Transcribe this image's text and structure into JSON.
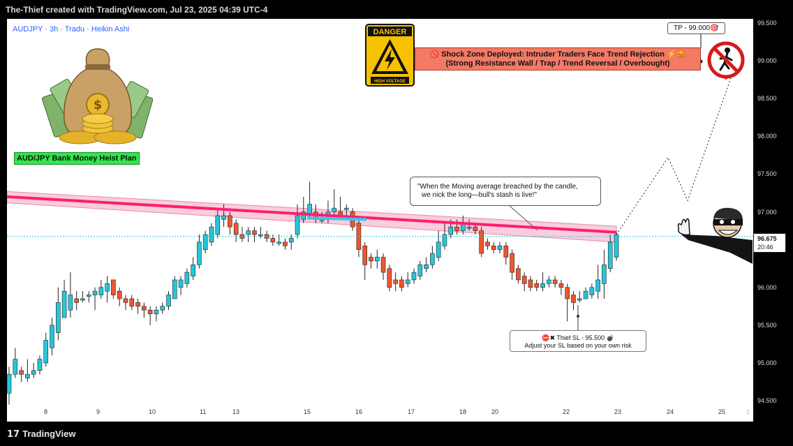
{
  "header": {
    "title": "The-Thief created with TradingView.com, Jul 23, 2025 04:39 UTC-4"
  },
  "symbol_line": "AUDJPY · 3h · Tradu · Heikin Ashi",
  "plan_label": "AUD/JPY Bank Money Heist Plan",
  "danger_sign": {
    "top": "DANGER",
    "bottom": "HIGH VOLTAGE"
  },
  "alert_box": {
    "line1": "🚫 Shock Zone Deployed: Intruder Traders Face Trend Rejection ⚡😡",
    "line2": "(Strong Resistance Wall / Trap / Trend Reversal / Overbought)"
  },
  "tp_label": "TP - 99.000🎯",
  "quote": {
    "line1": "\"When the Moving average breached by the candle,",
    "line2": "we nick the long—bull's stash is live!\""
  },
  "sl_box": {
    "line1": "⛔✖ Thief SL - 95.500 💣",
    "line2": "Adjust your SL based on your own risk"
  },
  "current_price": {
    "value": "96.675",
    "time": "20:46"
  },
  "branding": "TradingView",
  "colors": {
    "up": "#26c6da",
    "down": "#f0552f",
    "ma": "#ff1e6e",
    "band": "#f8cddd",
    "accent": "#2962ff"
  },
  "chart_data": {
    "type": "candlestick",
    "style": "Heikin Ashi",
    "price_axis": [
      "99.500",
      "99.000",
      "98.500",
      "98.000",
      "97.500",
      "97.000",
      "96.500",
      "96.000",
      "95.500",
      "95.000",
      "94.500"
    ],
    "date_axis": [
      "8",
      "9",
      "10",
      "11",
      "13",
      "15",
      "16",
      "17",
      "18",
      "20",
      "22",
      "23",
      "24",
      "25",
      "2"
    ],
    "ylim": [
      94.45,
      99.6
    ],
    "moving_average": {
      "start": 97.2,
      "end": 96.73
    },
    "resistance_band": {
      "start_top": 97.27,
      "start_bottom": 97.12,
      "end_top": 96.81,
      "end_bottom": 96.6
    },
    "candles": [
      [
        94.6,
        94.85,
        94.45,
        94.95
      ],
      [
        94.85,
        95.05,
        94.8,
        95.2
      ],
      [
        94.9,
        94.85,
        94.75,
        94.95
      ],
      [
        94.8,
        94.85,
        94.75,
        95.05
      ],
      [
        94.85,
        94.9,
        94.8,
        95.0
      ],
      [
        94.9,
        95.05,
        94.85,
        95.1
      ],
      [
        95.0,
        95.3,
        94.95,
        95.4
      ],
      [
        95.2,
        95.5,
        95.1,
        95.6
      ],
      [
        95.4,
        95.8,
        95.3,
        96.0
      ],
      [
        95.6,
        95.95,
        95.6,
        96.1
      ],
      [
        95.7,
        95.9,
        95.6,
        96.2
      ],
      [
        95.85,
        95.8,
        95.7,
        95.95
      ],
      [
        95.85,
        95.85,
        95.8,
        95.95
      ],
      [
        95.9,
        95.9,
        95.8,
        95.95
      ],
      [
        95.9,
        95.95,
        95.7,
        96.0
      ],
      [
        95.9,
        96.0,
        95.85,
        96.1
      ],
      [
        95.95,
        96.05,
        95.8,
        96.15
      ],
      [
        96.1,
        95.9,
        95.85,
        96.1
      ],
      [
        95.95,
        95.85,
        95.75,
        96.0
      ],
      [
        95.85,
        95.8,
        95.7,
        95.9
      ],
      [
        95.85,
        95.75,
        95.7,
        95.9
      ],
      [
        95.8,
        95.75,
        95.65,
        95.85
      ],
      [
        95.75,
        95.7,
        95.6,
        95.8
      ],
      [
        95.7,
        95.65,
        95.5,
        95.75
      ],
      [
        95.65,
        95.7,
        95.55,
        95.75
      ],
      [
        95.7,
        95.75,
        95.65,
        95.8
      ],
      [
        95.75,
        95.9,
        95.7,
        95.95
      ],
      [
        95.85,
        96.1,
        95.85,
        96.15
      ],
      [
        96.0,
        96.1,
        95.9,
        96.15
      ],
      [
        96.05,
        96.2,
        96.0,
        96.25
      ],
      [
        96.15,
        96.3,
        96.1,
        96.4
      ],
      [
        96.3,
        96.6,
        96.25,
        96.7
      ],
      [
        96.5,
        96.7,
        96.45,
        96.75
      ],
      [
        96.6,
        96.8,
        96.55,
        96.85
      ],
      [
        96.7,
        96.95,
        96.65,
        97.05
      ],
      [
        96.9,
        96.95,
        96.8,
        97.1
      ],
      [
        96.95,
        96.8,
        96.7,
        97.0
      ],
      [
        96.85,
        96.7,
        96.6,
        96.9
      ],
      [
        96.7,
        96.65,
        96.6,
        96.8
      ],
      [
        96.7,
        96.75,
        96.6,
        96.8
      ],
      [
        96.75,
        96.7,
        96.6,
        96.8
      ],
      [
        96.7,
        96.7,
        96.65,
        96.8
      ],
      [
        96.7,
        96.65,
        96.6,
        96.75
      ],
      [
        96.65,
        96.6,
        96.55,
        96.7
      ],
      [
        96.6,
        96.6,
        96.55,
        96.7
      ],
      [
        96.6,
        96.55,
        96.5,
        96.65
      ],
      [
        96.6,
        96.65,
        96.5,
        96.7
      ],
      [
        96.7,
        96.95,
        96.65,
        97.1
      ],
      [
        96.9,
        97.0,
        96.85,
        97.2
      ],
      [
        96.95,
        97.1,
        96.9,
        97.4
      ],
      [
        97.0,
        96.9,
        96.85,
        97.1
      ],
      [
        96.9,
        96.9,
        96.85,
        97.0
      ],
      [
        96.9,
        97.0,
        96.85,
        97.15
      ],
      [
        97.0,
        97.05,
        96.95,
        97.3
      ],
      [
        97.0,
        96.95,
        96.9,
        97.2
      ],
      [
        97.05,
        97.05,
        96.95,
        97.1
      ],
      [
        97.0,
        96.8,
        96.75,
        97.05
      ],
      [
        96.85,
        96.5,
        96.4,
        96.9
      ],
      [
        96.55,
        96.3,
        96.1,
        96.6
      ],
      [
        96.4,
        96.35,
        96.25,
        96.45
      ],
      [
        96.35,
        96.4,
        96.25,
        96.5
      ],
      [
        96.4,
        96.2,
        96.1,
        96.45
      ],
      [
        96.25,
        96.0,
        95.95,
        96.3
      ],
      [
        96.1,
        96.05,
        95.95,
        96.2
      ],
      [
        96.1,
        96.0,
        95.95,
        96.15
      ],
      [
        96.05,
        96.1,
        96.0,
        96.2
      ],
      [
        96.1,
        96.2,
        96.05,
        96.25
      ],
      [
        96.15,
        96.3,
        96.1,
        96.35
      ],
      [
        96.25,
        96.3,
        96.2,
        96.4
      ],
      [
        96.3,
        96.45,
        96.25,
        96.55
      ],
      [
        96.4,
        96.6,
        96.35,
        96.75
      ],
      [
        96.55,
        96.7,
        96.5,
        96.85
      ],
      [
        96.7,
        96.8,
        96.65,
        96.9
      ],
      [
        96.8,
        96.75,
        96.7,
        96.9
      ],
      [
        96.75,
        96.85,
        96.7,
        96.95
      ],
      [
        96.8,
        96.8,
        96.75,
        96.9
      ],
      [
        96.8,
        96.75,
        96.7,
        96.85
      ],
      [
        96.75,
        96.45,
        96.4,
        96.8
      ],
      [
        96.6,
        96.55,
        96.5,
        96.65
      ],
      [
        96.55,
        96.5,
        96.45,
        96.6
      ],
      [
        96.5,
        96.55,
        96.45,
        96.6
      ],
      [
        96.55,
        96.4,
        96.3,
        96.6
      ],
      [
        96.45,
        96.2,
        96.1,
        96.5
      ],
      [
        96.25,
        96.1,
        96.05,
        96.3
      ],
      [
        96.15,
        96.05,
        95.95,
        96.2
      ],
      [
        96.1,
        96.0,
        95.95,
        96.15
      ],
      [
        96.05,
        96.0,
        95.95,
        96.1
      ],
      [
        96.0,
        96.05,
        95.95,
        96.2
      ],
      [
        96.05,
        96.1,
        96.0,
        96.15
      ],
      [
        96.1,
        96.05,
        96.0,
        96.15
      ],
      [
        96.05,
        96.0,
        95.9,
        96.1
      ],
      [
        96.0,
        95.85,
        95.55,
        96.05
      ],
      [
        95.9,
        95.8,
        95.7,
        95.95
      ],
      [
        95.85,
        95.85,
        95.8,
        95.95
      ],
      [
        95.85,
        95.95,
        95.85,
        96.0
      ],
      [
        95.9,
        96.0,
        95.85,
        96.05
      ],
      [
        95.95,
        96.1,
        95.85,
        96.3
      ],
      [
        96.05,
        96.3,
        95.85,
        96.5
      ],
      [
        96.25,
        96.6,
        96.2,
        96.7
      ],
      [
        96.4,
        96.7,
        96.35,
        96.75
      ]
    ],
    "forecast_path": [
      96.7,
      97.72,
      97.15,
      98.85
    ]
  }
}
